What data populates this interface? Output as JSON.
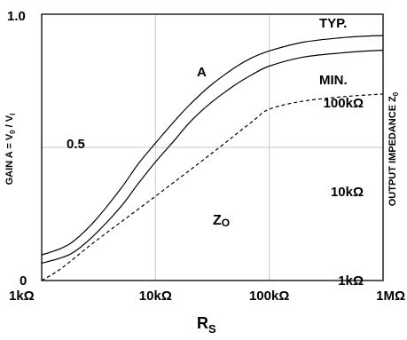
{
  "chart_data": {
    "type": "line",
    "x_scale": "log",
    "xlim": [
      1000,
      1000000
    ],
    "ylim": [
      0,
      1.0
    ],
    "grid": true,
    "x_ticks": [
      "1kΩ",
      "10kΩ",
      "100kΩ",
      "1MΩ"
    ],
    "x_tick_values": [
      1000,
      10000,
      100000,
      1000000
    ],
    "y_ticks": [
      "0",
      "0.5",
      "1.0"
    ],
    "y_tick_values": [
      0,
      0.5,
      1.0
    ],
    "xlabel_main": "R",
    "xlabel_sub": "S",
    "ylabel_left": "GAIN A = V",
    "ylabel_left_sub1": "0",
    "ylabel_left_mid": " / V",
    "ylabel_left_sub2": "I",
    "ylabel_right": "OUTPUT IMPEDANCE Z",
    "ylabel_right_sub": "0",
    "right_axis": {
      "scale": "log",
      "ticks": [
        "1kΩ",
        "10kΩ",
        "100kΩ"
      ],
      "tick_values": [
        1000,
        10000,
        100000
      ],
      "range": [
        1000,
        1000000
      ]
    },
    "annotations": {
      "typ": "TYP.",
      "min": "MIN.",
      "a": "A",
      "zo_main": "Z",
      "zo_sub": "O"
    },
    "series": [
      {
        "name": "TYP.",
        "axis": "left",
        "style": "solid",
        "x": [
          1000,
          1500,
          2000,
          3000,
          5000,
          7000,
          10000,
          15000,
          20000,
          30000,
          50000,
          70000,
          100000,
          200000,
          500000,
          1000000
        ],
        "y": [
          0.096,
          0.122,
          0.155,
          0.229,
          0.347,
          0.436,
          0.516,
          0.603,
          0.66,
          0.73,
          0.8,
          0.836,
          0.862,
          0.895,
          0.914,
          0.92
        ]
      },
      {
        "name": "MIN.",
        "axis": "left",
        "style": "solid",
        "x": [
          1000,
          1500,
          2000,
          3000,
          5000,
          7000,
          10000,
          15000,
          20000,
          30000,
          50000,
          70000,
          100000,
          200000,
          500000,
          1000000
        ],
        "y": [
          0.065,
          0.086,
          0.112,
          0.177,
          0.279,
          0.362,
          0.445,
          0.531,
          0.594,
          0.664,
          0.734,
          0.772,
          0.805,
          0.839,
          0.857,
          0.865
        ]
      },
      {
        "name": "ZO",
        "axis": "right",
        "style": "dashed",
        "x": [
          1000,
          1500,
          3000,
          10000,
          30000,
          70000,
          100000,
          200000,
          500000,
          1000000
        ],
        "y": [
          1000,
          1380,
          2800,
          8900,
          26000,
          61000,
          85000,
          105000,
          119000,
          126000
        ]
      }
    ]
  }
}
